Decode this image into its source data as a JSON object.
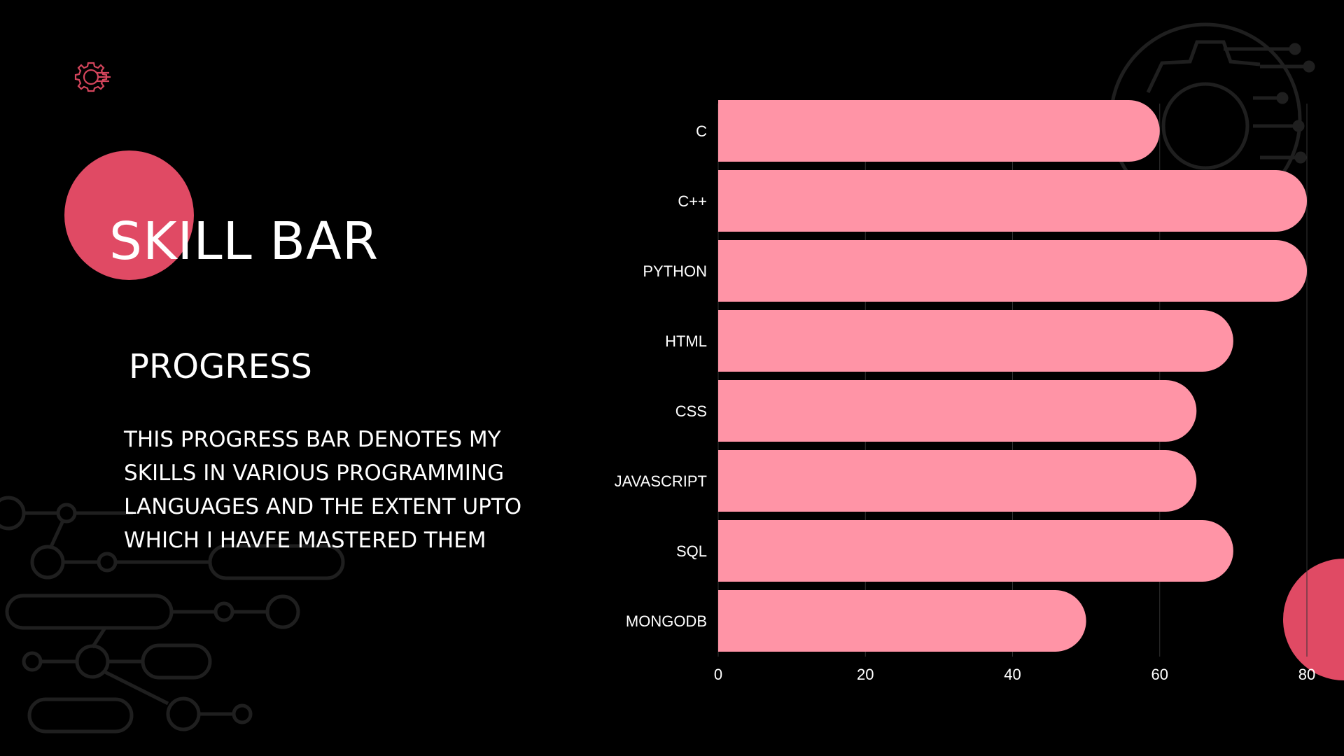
{
  "slide": {
    "title": "SKILL BAR",
    "subtitle": "PROGRESS",
    "description": "THIS PROGRESS BAR DENOTES MY SKILLS IN VARIOUS PROGRAMMING LANGUAGES AND THE EXTENT UPTO WHICH I HAVFE MASTERED THEM",
    "logo_icon": "gear-code-icon",
    "background_color": "#000000",
    "accent_color": "#e04a64"
  },
  "chart_data": {
    "type": "bar",
    "orientation": "horizontal",
    "categories": [
      "C",
      "C++",
      "PYTHON",
      "HTML",
      "CSS",
      "JAVASCRIPT",
      "SQL",
      "MONGODB"
    ],
    "values": [
      60,
      80,
      80,
      70,
      65,
      65,
      70,
      50
    ],
    "xlim": [
      0,
      80
    ],
    "xticks": [
      0,
      20,
      40,
      60,
      80
    ],
    "grid": true,
    "bar_color": "#ff94a6",
    "title": "",
    "xlabel": "",
    "ylabel": ""
  }
}
